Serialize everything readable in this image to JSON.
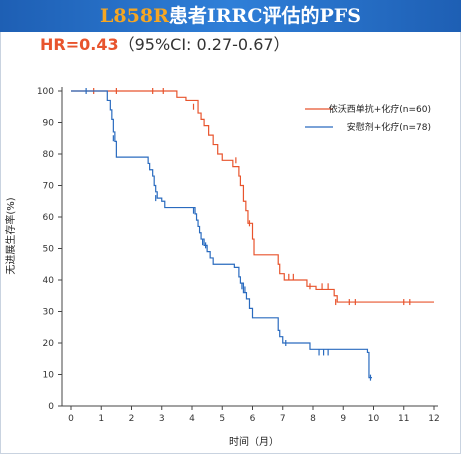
{
  "banner": {
    "title_accent": "L858R",
    "title_rest": "患者IRRC评估的PFS"
  },
  "hazard": {
    "hr_text": "HR=0.43",
    "ci_text": "（95%CI: 0.27-0.67）"
  },
  "chart_data": {
    "type": "line",
    "subtype": "kaplan-meier-step",
    "xlabel": "时间（月）",
    "ylabel": "无进展生存率(%)",
    "xlim": [
      0,
      12
    ],
    "ylim": [
      0,
      100
    ],
    "x_ticks": [
      0,
      1,
      2,
      3,
      4,
      5,
      6,
      7,
      8,
      9,
      10,
      11,
      12
    ],
    "y_ticks": [
      0,
      10,
      20,
      30,
      40,
      50,
      60,
      70,
      80,
      90,
      100
    ],
    "grid": false,
    "legend_position": "top-right",
    "series": [
      {
        "name": "依沃西单抗+化疗(n=60)",
        "color": "#e8542d",
        "steps": [
          [
            0,
            100
          ],
          [
            3.5,
            98
          ],
          [
            3.8,
            97
          ],
          [
            4.2,
            93
          ],
          [
            4.3,
            91
          ],
          [
            4.4,
            89
          ],
          [
            4.55,
            86
          ],
          [
            4.7,
            83
          ],
          [
            4.85,
            80
          ],
          [
            5.0,
            78
          ],
          [
            5.35,
            76
          ],
          [
            5.55,
            73
          ],
          [
            5.6,
            70
          ],
          [
            5.7,
            65
          ],
          [
            5.78,
            62
          ],
          [
            5.85,
            58
          ],
          [
            6.0,
            53
          ],
          [
            6.05,
            48
          ],
          [
            6.85,
            45
          ],
          [
            6.9,
            42
          ],
          [
            7.05,
            40
          ],
          [
            7.8,
            38
          ],
          [
            8.1,
            37
          ],
          [
            8.7,
            35
          ],
          [
            8.8,
            33
          ],
          [
            12,
            33
          ]
        ],
        "censors": [
          [
            0.75,
            100
          ],
          [
            1.5,
            100
          ],
          [
            2.7,
            100
          ],
          [
            3.05,
            100
          ],
          [
            4.05,
            95
          ],
          [
            5.45,
            78
          ],
          [
            5.9,
            58
          ],
          [
            7.2,
            41
          ],
          [
            7.35,
            41
          ],
          [
            7.9,
            38
          ],
          [
            8.3,
            38
          ],
          [
            8.5,
            38
          ],
          [
            8.75,
            33
          ],
          [
            9.2,
            33
          ],
          [
            9.4,
            33
          ],
          [
            11.0,
            33
          ],
          [
            11.2,
            33
          ]
        ]
      },
      {
        "name": "安慰剂+化疗(n=78)",
        "color": "#2a6bbf",
        "steps": [
          [
            0,
            100
          ],
          [
            1.2,
            97
          ],
          [
            1.3,
            94
          ],
          [
            1.35,
            91
          ],
          [
            1.4,
            87
          ],
          [
            1.45,
            84
          ],
          [
            1.5,
            79
          ],
          [
            2.55,
            77
          ],
          [
            2.6,
            75
          ],
          [
            2.7,
            73
          ],
          [
            2.75,
            70
          ],
          [
            2.8,
            68
          ],
          [
            2.85,
            66
          ],
          [
            3.0,
            65
          ],
          [
            3.1,
            63
          ],
          [
            4.1,
            61
          ],
          [
            4.15,
            59
          ],
          [
            4.2,
            57
          ],
          [
            4.25,
            55
          ],
          [
            4.3,
            53
          ],
          [
            4.4,
            51
          ],
          [
            4.5,
            49
          ],
          [
            4.6,
            47
          ],
          [
            4.7,
            45
          ],
          [
            5.4,
            44
          ],
          [
            5.55,
            41
          ],
          [
            5.6,
            39
          ],
          [
            5.7,
            36
          ],
          [
            5.8,
            34
          ],
          [
            5.9,
            31
          ],
          [
            6.0,
            28
          ],
          [
            6.8,
            28
          ],
          [
            6.85,
            24
          ],
          [
            6.9,
            22
          ],
          [
            7.0,
            20
          ],
          [
            7.9,
            18
          ],
          [
            9.8,
            17
          ],
          [
            9.85,
            9
          ],
          [
            9.95,
            9
          ]
        ],
        "censors": [
          [
            0.5,
            100
          ],
          [
            1.4,
            85
          ],
          [
            2.8,
            66
          ],
          [
            4.05,
            62
          ],
          [
            4.35,
            52
          ],
          [
            4.45,
            51
          ],
          [
            5.65,
            38
          ],
          [
            5.75,
            37
          ],
          [
            7.1,
            20
          ],
          [
            8.2,
            17
          ],
          [
            8.35,
            17
          ],
          [
            8.5,
            17
          ],
          [
            9.9,
            9
          ]
        ]
      }
    ]
  }
}
